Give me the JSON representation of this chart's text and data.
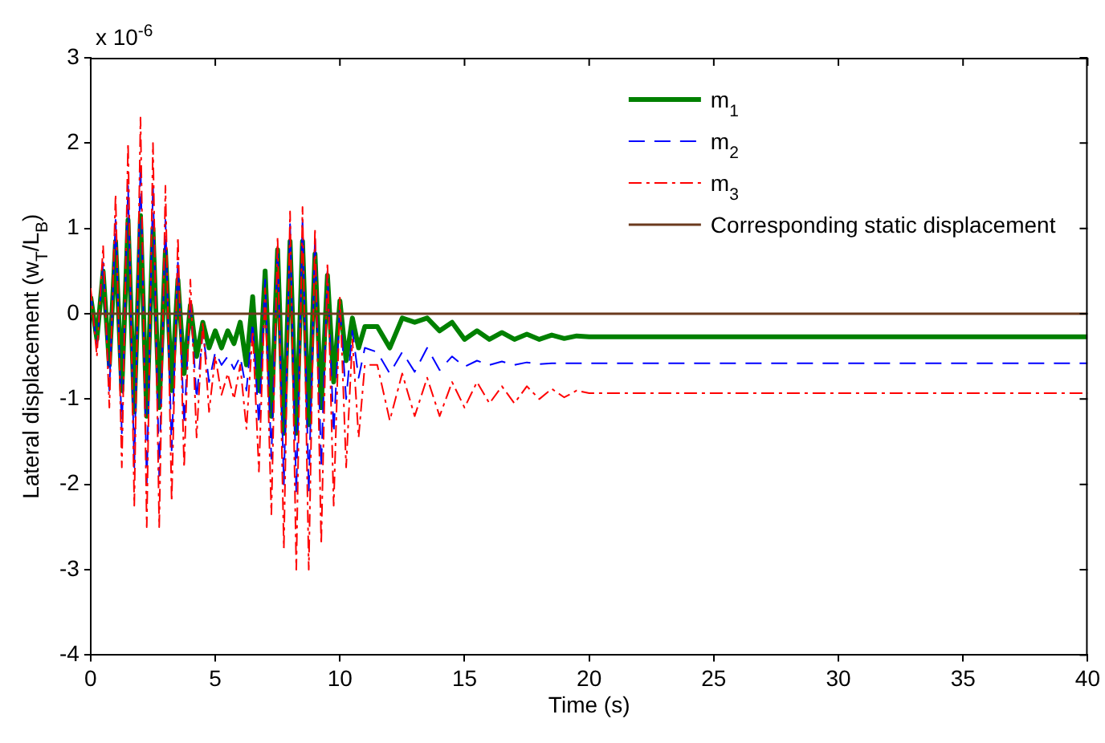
{
  "chart_data": {
    "type": "line",
    "xlabel": "Time (s)",
    "ylabel": "Lateral displacement (w$_{T}$/L$_{B}$)",
    "annotations": [
      "x 10$^{-6}$"
    ],
    "x": [
      0,
      0.25,
      0.5,
      0.75,
      1,
      1.25,
      1.5,
      1.75,
      2,
      2.25,
      2.5,
      2.75,
      3,
      3.25,
      3.5,
      3.75,
      4,
      4.25,
      4.5,
      4.75,
      5,
      5.25,
      5.5,
      5.75,
      6,
      6.25,
      6.5,
      6.75,
      7,
      7.25,
      7.5,
      7.75,
      8,
      8.25,
      8.5,
      8.75,
      9,
      9.25,
      9.5,
      9.75,
      10,
      10.25,
      10.5,
      10.75,
      11,
      11.5,
      12,
      12.5,
      13,
      13.5,
      14,
      14.5,
      15,
      15.5,
      16,
      16.5,
      17,
      17.5,
      18,
      18.5,
      19,
      19.5,
      20,
      40
    ],
    "series": [
      {
        "name": "m$_{1}$",
        "color": "#008000",
        "line_style": "solid",
        "values": [
          0.2,
          -0.3,
          0.5,
          -0.6,
          0.85,
          -0.9,
          1.1,
          -1.15,
          1.15,
          -1.2,
          1.0,
          -1.1,
          0.75,
          -0.9,
          0.4,
          -0.7,
          0.1,
          -0.5,
          -0.1,
          -0.4,
          -0.2,
          -0.4,
          -0.2,
          -0.35,
          -0.1,
          -0.6,
          0.2,
          -0.9,
          0.5,
          -1.2,
          0.75,
          -1.4,
          0.85,
          -1.4,
          0.85,
          -1.3,
          0.7,
          -1.1,
          0.45,
          -0.8,
          0.15,
          -0.55,
          -0.05,
          -0.4,
          -0.15,
          -0.15,
          -0.4,
          -0.05,
          -0.1,
          -0.05,
          -0.2,
          -0.1,
          -0.3,
          -0.2,
          -0.3,
          -0.22,
          -0.3,
          -0.24,
          -0.3,
          -0.25,
          -0.29,
          -0.26,
          -0.27,
          -0.27
        ]
      },
      {
        "name": "m$_{2}$",
        "color": "#0000ff",
        "line_style": "dashed",
        "values": [
          0.25,
          -0.4,
          0.6,
          -0.9,
          1.1,
          -1.4,
          1.5,
          -1.8,
          1.75,
          -2.0,
          1.5,
          -1.9,
          1.1,
          -1.6,
          0.6,
          -1.3,
          0.2,
          -1.0,
          -0.2,
          -0.8,
          -0.45,
          -0.6,
          -0.5,
          -0.65,
          -0.5,
          -0.9,
          -0.1,
          -1.3,
          0.4,
          -1.7,
          0.8,
          -2.0,
          1.05,
          -2.1,
          1.1,
          -2.1,
          0.9,
          -1.8,
          0.5,
          -1.4,
          0.1,
          -1.0,
          -0.2,
          -0.75,
          -0.4,
          -0.45,
          -0.7,
          -0.45,
          -0.68,
          -0.4,
          -0.66,
          -0.5,
          -0.62,
          -0.55,
          -0.6,
          -0.56,
          -0.6,
          -0.57,
          -0.59,
          -0.58,
          -0.58,
          -0.58,
          -0.58,
          -0.58
        ]
      },
      {
        "name": "m$_{3}$",
        "color": "#ff0000",
        "line_style": "dashdot",
        "values": [
          0.3,
          -0.5,
          0.8,
          -1.1,
          1.4,
          -1.8,
          2.0,
          -2.25,
          2.3,
          -2.5,
          2.0,
          -2.5,
          1.5,
          -2.2,
          0.9,
          -1.8,
          0.4,
          -1.45,
          -0.1,
          -1.15,
          -0.5,
          -0.95,
          -0.7,
          -1.0,
          -0.6,
          -1.35,
          -0.2,
          -1.85,
          0.3,
          -2.35,
          0.9,
          -2.75,
          1.2,
          -3.0,
          1.25,
          -3.0,
          1.0,
          -2.7,
          0.6,
          -2.25,
          0.2,
          -1.8,
          -0.3,
          -1.45,
          -0.6,
          -0.6,
          -1.25,
          -0.7,
          -1.2,
          -0.75,
          -1.2,
          -0.8,
          -1.1,
          -0.8,
          -1.05,
          -0.85,
          -1.05,
          -0.85,
          -1.0,
          -0.88,
          -0.98,
          -0.9,
          -0.93,
          -0.93
        ]
      },
      {
        "name": "Corresponding static displacement",
        "color": "#6b3a1e",
        "line_style": "solid",
        "x": [
          0,
          40
        ],
        "values": [
          0,
          0
        ]
      }
    ],
    "xlim": [
      0,
      40
    ],
    "xticks": [
      0,
      5,
      10,
      15,
      20,
      25,
      30,
      35,
      40
    ],
    "ylim": [
      -4,
      3
    ],
    "yticks": [
      -4,
      -3,
      -2,
      -1,
      0,
      1,
      2,
      3
    ],
    "grid": false,
    "legend": "top right",
    "marker": "none"
  }
}
